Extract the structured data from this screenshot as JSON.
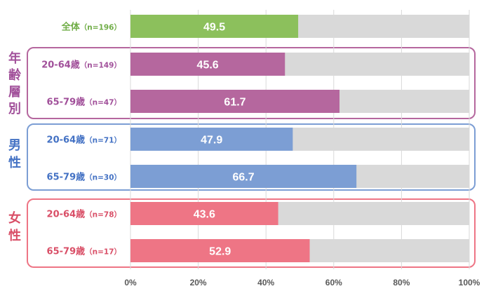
{
  "chart_data": {
    "type": "bar",
    "orientation": "horizontal",
    "categories": [
      {
        "main": "全体",
        "n": "（n=196）",
        "group": "total"
      },
      {
        "main": "20-64歳",
        "n": "（n=149）",
        "group": "age"
      },
      {
        "main": "65-79歳",
        "n": "（n=47）",
        "group": "age"
      },
      {
        "main": "20-64歳",
        "n": "（n=71）",
        "group": "male"
      },
      {
        "main": "65-79歳",
        "n": "（n=30）",
        "group": "male"
      },
      {
        "main": "20-64歳",
        "n": "（n=78）",
        "group": "female"
      },
      {
        "main": "65-79歳",
        "n": "（n=17）",
        "group": "female"
      }
    ],
    "values": [
      49.5,
      45.6,
      61.7,
      47.9,
      66.7,
      43.6,
      52.9
    ],
    "value_labels": [
      "49.5",
      "45.6",
      "61.7",
      "47.9",
      "66.7",
      "43.6",
      "52.9"
    ],
    "xlim": [
      0,
      100
    ],
    "x_ticks": [
      "0%",
      "20%",
      "40%",
      "60%",
      "80%",
      "100%"
    ],
    "grid": true,
    "legend": "none",
    "groups": {
      "total": {
        "label": "",
        "color": "#8CC05C",
        "text_color": "#70AD47"
      },
      "age": {
        "label": "年齢層別",
        "color": "#B5679E",
        "text_color": "#A1509A"
      },
      "male": {
        "label": "男性",
        "color": "#7C9ED4",
        "text_color": "#4472C4"
      },
      "female": {
        "label": "女性",
        "color": "#EE7585",
        "text_color": "#D94F67"
      }
    },
    "track_color": "#D9D9D9"
  }
}
